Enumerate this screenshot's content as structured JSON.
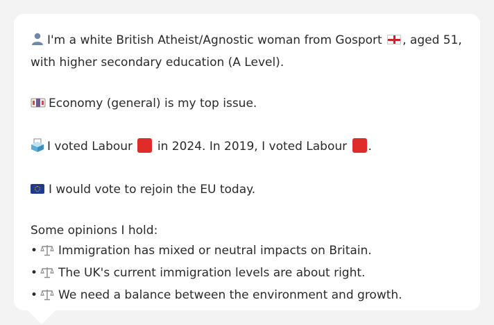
{
  "persona": {
    "line1": "I'm a white British Atheist/Agnostic woman from Gosport",
    "line1_suffix": ", aged 51,",
    "line2": "with higher secondary education (A Level).",
    "top_issue": "Economy (general) is my top issue.",
    "vote_a": "I voted Labour",
    "vote_b": "in 2024. In 2019, I voted Labour",
    "vote_c": ".",
    "eu": "I would vote to rejoin the EU today.",
    "opinions_heading": "Some opinions I hold:",
    "bullet_char": "•",
    "opinions": [
      "Immigration has mixed or neutral impacts on Britain.",
      "The UK's current immigration levels are about right.",
      "We need a balance between the environment and growth."
    ]
  },
  "icons": {
    "person": "person-icon",
    "england_flag": "england-flag-icon",
    "banknote": "banknote-icon",
    "ballot_box": "ballot-box-icon",
    "labour_square": "red-square-icon",
    "eu_flag": "eu-flag-icon",
    "balance_scale": "balance-scale-icon"
  },
  "colors": {
    "background": "#f3f3f3",
    "bubble": "#ffffff",
    "text": "#2a2a2a",
    "labour_red": "#e02b2b",
    "eu_blue": "#1f3a8f"
  }
}
